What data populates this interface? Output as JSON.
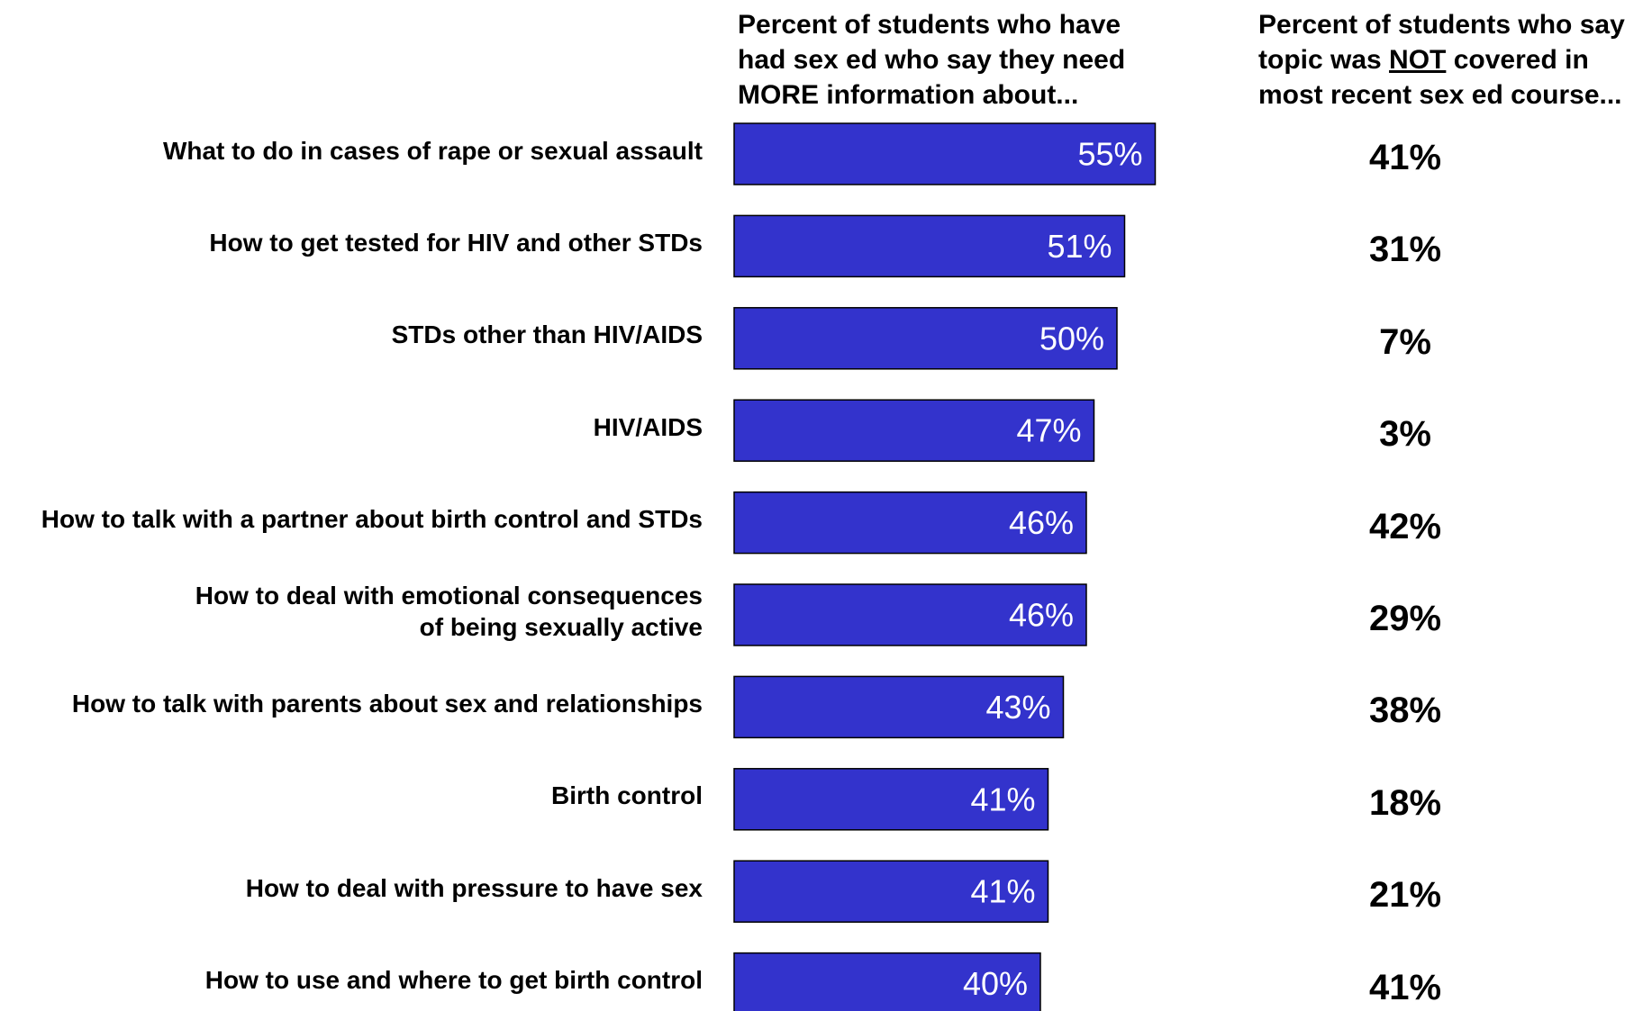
{
  "chart_data": {
    "type": "bar",
    "orientation": "horizontal",
    "categories": [
      "What to do in cases of rape or sexual assault",
      "How to get tested for HIV and other STDs",
      "STDs other than HIV/AIDS",
      "HIV/AIDS",
      "How to talk with a partner about birth control and STDs",
      "How  to deal with emotional consequences\nof being sexually active",
      "How to talk with parents about sex and relationships",
      "Birth control",
      "How to deal with pressure to have sex",
      "How  to use and where to get birth control"
    ],
    "values": [
      55,
      51,
      50,
      47,
      46,
      46,
      43,
      41,
      41,
      40
    ],
    "value_labels": [
      "55%",
      "51%",
      "50%",
      "47%",
      "46%",
      "46%",
      "43%",
      "41%",
      "41%",
      "40%"
    ],
    "not_covered_values": [
      41,
      31,
      7,
      3,
      42,
      29,
      38,
      18,
      21,
      41
    ],
    "not_covered_labels": [
      "41%",
      "31%",
      "7%",
      "3%",
      "42%",
      "29%",
      "38%",
      "18%",
      "21%",
      "41%"
    ],
    "headers": {
      "left_lines": [
        "Percent of students who have",
        "had sex ed who say they need",
        "MORE information about..."
      ],
      "right_line1": "Percent of students who say",
      "right_line2_pre": "topic was ",
      "right_line2_underlined": "NOT",
      "right_line2_post": " covered in",
      "right_line3": "most recent sex ed course..."
    },
    "xlim": [
      0,
      100
    ],
    "grid": false,
    "legend": "none",
    "colors": {
      "bar_fill": "#3333CC",
      "bar_stroke": "#000000",
      "bar_label": "#ffffff",
      "text": "#000000"
    }
  }
}
